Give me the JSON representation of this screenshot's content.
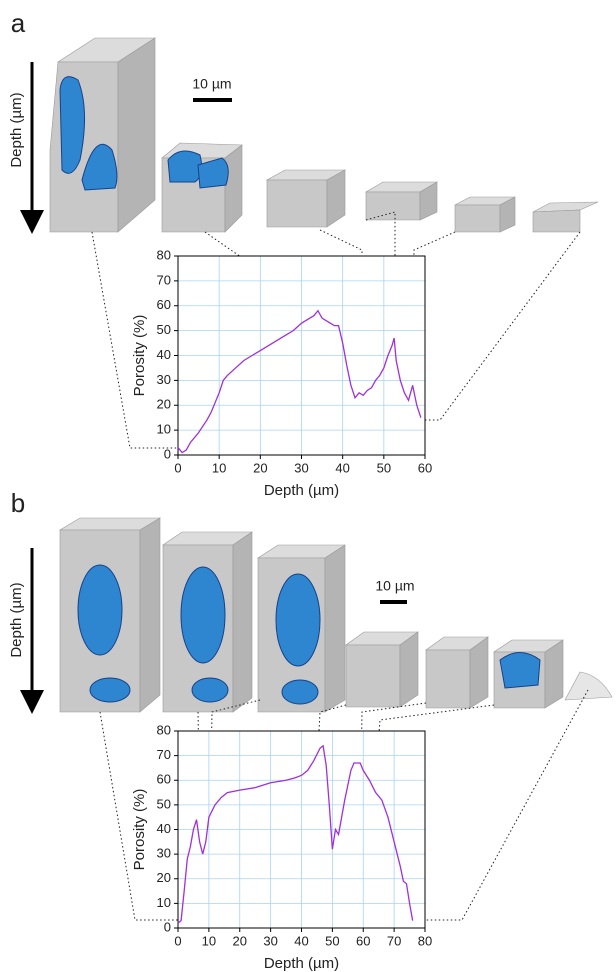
{
  "chart_data": [
    {
      "type": "line",
      "panel_label": "a",
      "side_label": "Depth (µm)",
      "scale_bar": "10 µm",
      "xlabel": "Depth (µm)",
      "ylabel": "Porosity (%)",
      "color": "#a030d8",
      "grid": true,
      "xlim": [
        0,
        60
      ],
      "ylim": [
        0,
        80
      ],
      "xticks": [
        0,
        10,
        20,
        30,
        40,
        50,
        60
      ],
      "yticks": [
        0,
        10,
        20,
        30,
        40,
        50,
        60,
        70,
        80
      ],
      "x": [
        0,
        1,
        2,
        3,
        5,
        7,
        8,
        10,
        11,
        12,
        14,
        16,
        18,
        20,
        22,
        24,
        26,
        28,
        30,
        32,
        33,
        34,
        35,
        36,
        37,
        38,
        39,
        40,
        41,
        42,
        43,
        44,
        45,
        46,
        47,
        48,
        49,
        50,
        51,
        52,
        52.5,
        53,
        54,
        55,
        56,
        57,
        58,
        59
      ],
      "values": [
        3,
        1,
        2,
        5,
        9,
        14,
        17,
        25,
        30,
        32,
        35,
        38,
        40,
        42,
        44,
        46,
        48,
        50,
        53,
        55,
        56,
        58,
        55,
        54,
        53,
        52,
        52,
        45,
        36,
        28,
        23,
        25,
        24,
        26,
        27,
        30,
        32,
        35,
        40,
        44,
        47,
        38,
        30,
        25,
        22,
        28,
        20,
        15
      ]
    },
    {
      "type": "line",
      "panel_label": "b",
      "side_label": "Depth (µm)",
      "scale_bar": "10 µm",
      "xlabel": "Depth (µm)",
      "ylabel": "Porosity (%)",
      "color": "#a030d8",
      "grid": true,
      "xlim": [
        0,
        80
      ],
      "ylim": [
        0,
        80
      ],
      "xticks": [
        0,
        10,
        20,
        30,
        40,
        50,
        60,
        70,
        80
      ],
      "yticks": [
        0,
        10,
        20,
        30,
        40,
        50,
        60,
        70,
        80
      ],
      "x": [
        0,
        1,
        2,
        3,
        4,
        5,
        6,
        7,
        8,
        9,
        10,
        12,
        14,
        16,
        20,
        25,
        30,
        35,
        38,
        40,
        42,
        44,
        46,
        47,
        48,
        49,
        50,
        51,
        52,
        54,
        56,
        57,
        59,
        60,
        62,
        64,
        66,
        68,
        70,
        72,
        73,
        74,
        75,
        76
      ],
      "values": [
        2,
        3,
        15,
        28,
        33,
        40,
        44,
        35,
        30,
        35,
        45,
        50,
        53,
        55,
        56,
        57,
        59,
        60,
        61,
        62,
        64,
        68,
        73,
        74,
        66,
        50,
        32,
        40,
        38,
        52,
        64,
        67,
        67,
        64,
        60,
        55,
        52,
        45,
        35,
        25,
        19,
        18,
        10,
        3
      ]
    }
  ]
}
